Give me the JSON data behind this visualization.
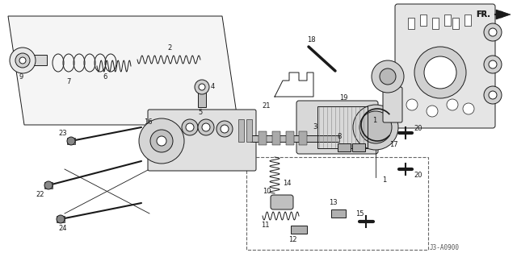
{
  "bg_color": "#ffffff",
  "line_color": "#1a1a1a",
  "gray1": "#aaaaaa",
  "gray2": "#777777",
  "gray3": "#cccccc",
  "watermark": "J3-A0900",
  "fr_label": "FR."
}
